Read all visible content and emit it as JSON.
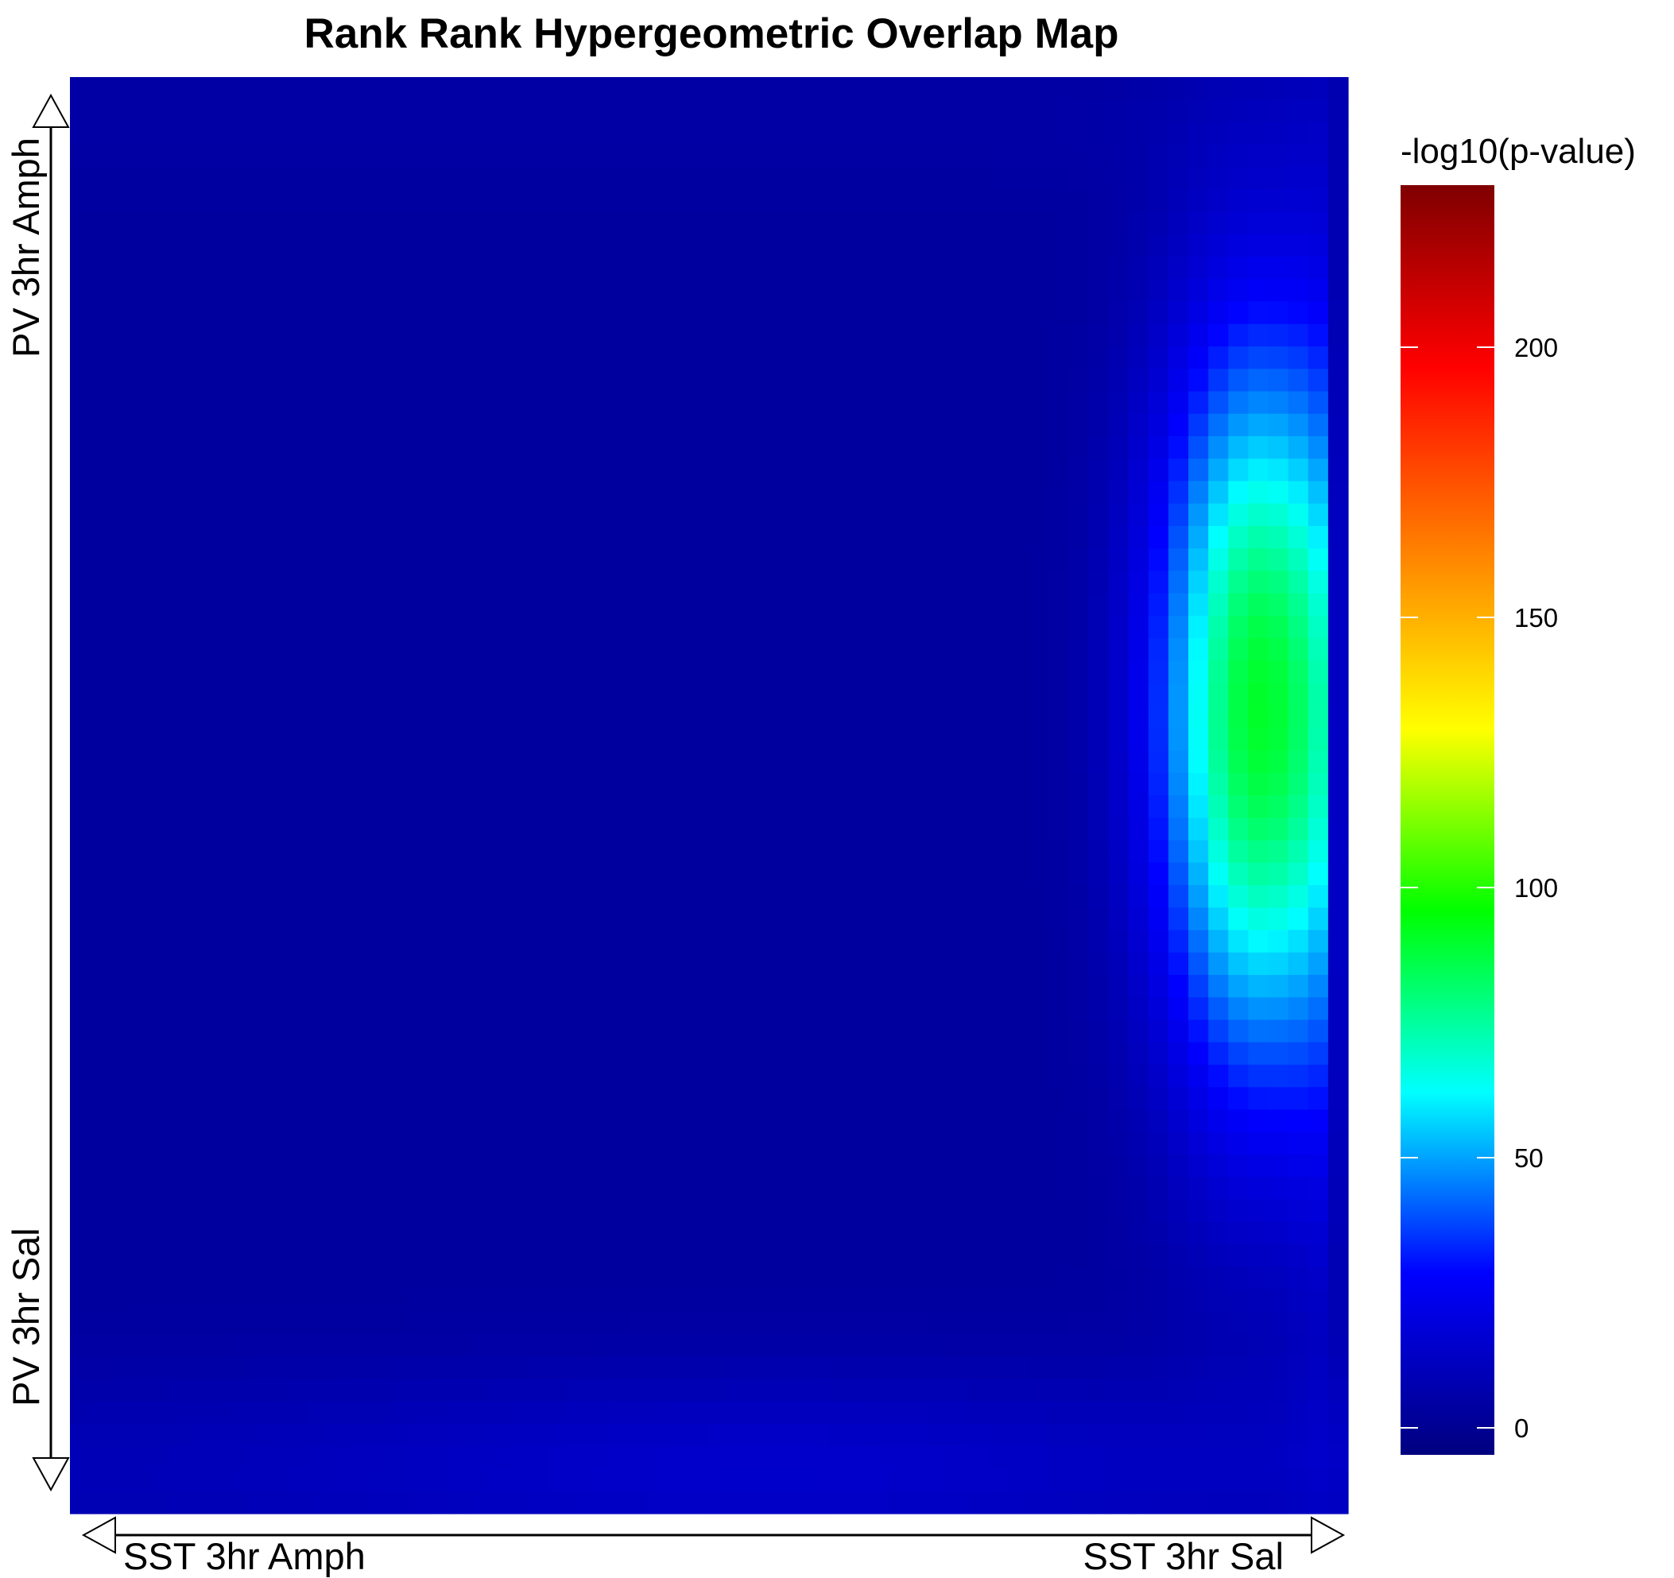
{
  "chart_data": {
    "type": "heatmap",
    "title": "Rank Rank Hypergeometric Overlap Map",
    "x_axis": {
      "start_label": "SST 3hr Amph",
      "end_label": "SST 3hr Sal"
    },
    "y_axis": {
      "start_label": "PV 3hr Amph",
      "end_label": "PV 3hr Sal"
    },
    "colorbar": {
      "title": "-log10(p-value)",
      "range": [
        -5,
        230
      ],
      "ticks": [
        0,
        50,
        100,
        150,
        200
      ],
      "tick_labels": [
        "0",
        "50",
        "100",
        "150",
        "200"
      ],
      "colors": [
        "#00007f",
        "#0000ff",
        "#00ffff",
        "#00ff00",
        "#ffff00",
        "#ff7f00",
        "#ff0000",
        "#7f0000"
      ]
    },
    "grid": "64x64 cells; x from SST 3hr Amph (left) to SST 3hr Sal (right); y from PV 3hr Amph (top) to PV 3hr Sal (bottom)",
    "background_level": 3,
    "hotspot": {
      "peak_value": 87,
      "peak_x_fraction": 0.93,
      "peak_y_fraction": 0.44,
      "x_sigma_fraction": 0.055,
      "y_sigma_fraction": 0.18,
      "x_limit_fraction": 0.985
    },
    "secondary_glow": {
      "value": 12,
      "description": "faint brighter band along bottom edge and far right column"
    }
  }
}
